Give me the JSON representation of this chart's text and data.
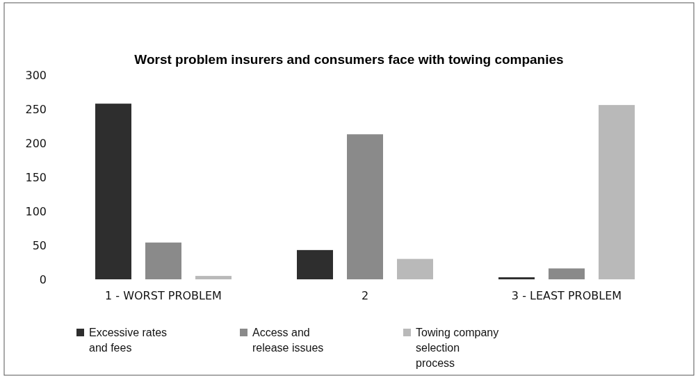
{
  "chart_data": {
    "type": "bar",
    "title": "Worst problem insurers and consumers face with towing companies",
    "categories": [
      "1 - WORST PROBLEM",
      "2",
      "3 - LEAST PROBLEM"
    ],
    "series": [
      {
        "name": "Excessive rates and fees",
        "color": "#2e2e2e",
        "values": [
          258,
          43,
          3
        ]
      },
      {
        "name": "Access and release issues",
        "color": "#8a8a8a",
        "values": [
          54,
          213,
          16
        ]
      },
      {
        "name": "Towing company selection process",
        "color": "#b9b9b9",
        "values": [
          5,
          30,
          256
        ]
      }
    ],
    "ylim": [
      0,
      300
    ],
    "yticks": [
      0,
      50,
      100,
      150,
      200,
      250,
      300
    ],
    "grid": false,
    "legend": "bottom"
  }
}
